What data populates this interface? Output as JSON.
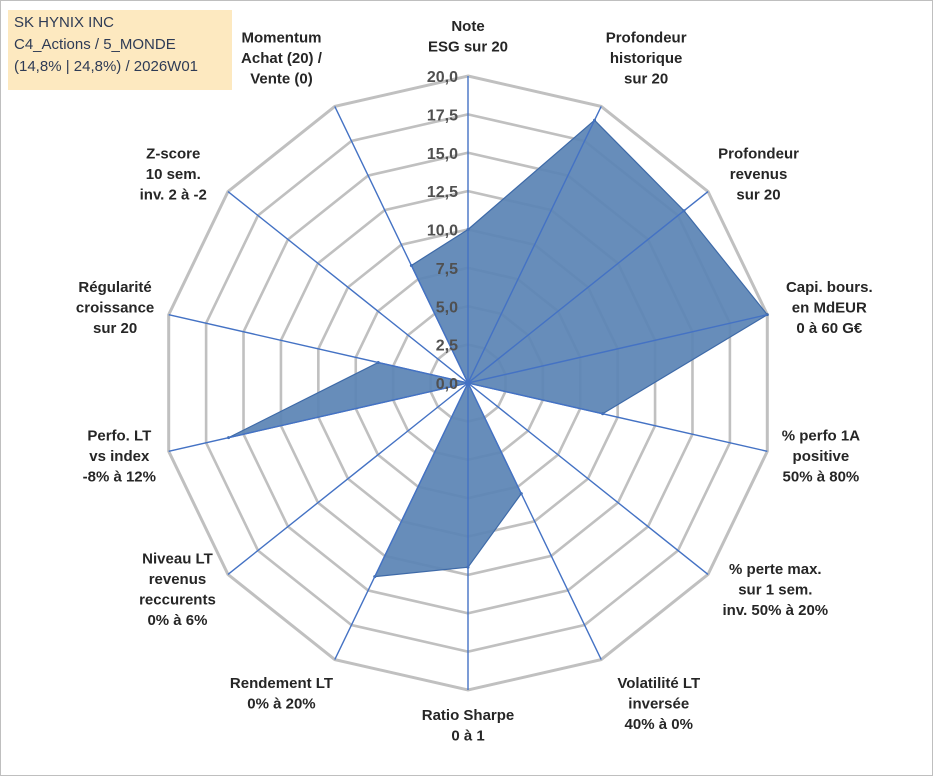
{
  "header": {
    "company": "SK HYNIX INC",
    "category": "C4_Actions / 5_MONDE",
    "stats": "(14,8% | 24,8%) / 2026W01"
  },
  "chart_data": {
    "type": "radar",
    "title": "",
    "axes": [
      [
        "Note",
        "ESG sur 20"
      ],
      [
        "Profondeur",
        "historique",
        "sur 20"
      ],
      [
        "Profondeur",
        "revenus",
        "sur 20"
      ],
      [
        "Capi. bours.",
        "en MdEUR",
        "0 à 60 G€"
      ],
      [
        "% perfo 1A",
        "positive",
        "50% à 80%"
      ],
      [
        "% perte max.",
        "sur 1 sem.",
        "inv. 50% à 20%"
      ],
      [
        "Volatilité LT",
        "inversée",
        "40% à 0%"
      ],
      [
        "Ratio Sharpe",
        "0 à 1"
      ],
      [
        "Rendement LT",
        "0% à 20%"
      ],
      [
        "Niveau LT",
        "revenus",
        "reccurents",
        "0% à 6%"
      ],
      [
        "Perfo. LT",
        "vs index",
        "-8% à 12%"
      ],
      [
        "Régularité",
        "croissance",
        "sur 20"
      ],
      [
        "Z-score",
        "10 sem.",
        "inv. 2 à -2"
      ],
      [
        "Momentum",
        "Achat (20) /",
        "Vente (0)"
      ]
    ],
    "values": [
      10.0,
      19.0,
      18.0,
      20.0,
      9.0,
      0.0,
      8.0,
      12.0,
      14.0,
      0.0,
      16.0,
      6.0,
      0.0,
      8.5
    ],
    "rlim": [
      0,
      20
    ],
    "ticks": [
      "0,0",
      "2,5",
      "5,0",
      "7,5",
      "10,0",
      "12,5",
      "15,0",
      "17,5",
      "20,0"
    ],
    "grid": true,
    "colors": {
      "fill": "#5b84b5",
      "spoke": "#4472c4",
      "grid": "#c0c0c0",
      "edge": "#3e6aa8"
    }
  }
}
